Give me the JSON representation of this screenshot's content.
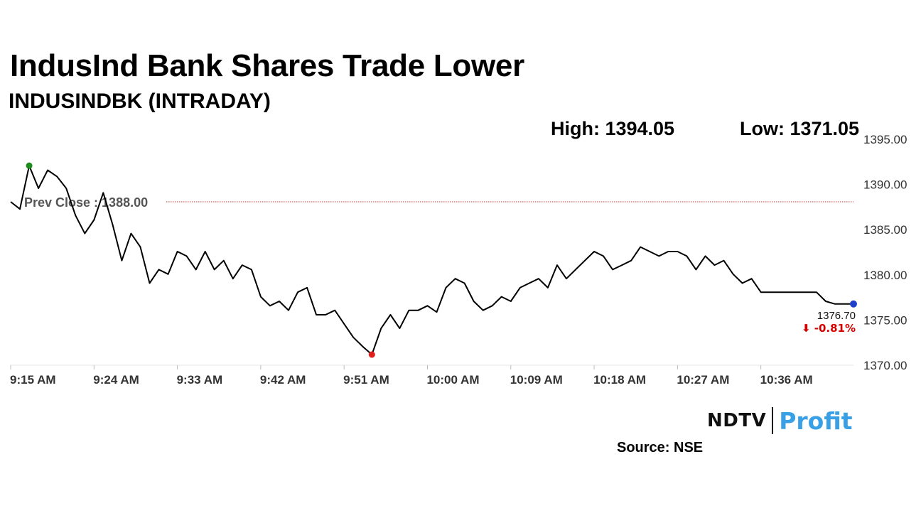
{
  "header": {
    "title": "IndusInd Bank Shares Trade Lower",
    "subtitle": "INDUSINDBK (INTRADAY)"
  },
  "stats": {
    "high_label": "High: 1394.05",
    "low_label": "Low: 1371.05"
  },
  "footer": {
    "brand_left": "NDTV",
    "brand_right": "Profit",
    "source": "Source: NSE"
  },
  "colors": {
    "line": "#000000",
    "prev_close": "#c0392b",
    "high_marker": "#1e8c1e",
    "low_marker": "#e0201c",
    "last_marker": "#1f3fc8",
    "change_negative": "#d40000",
    "brand_accent": "#3aa0e6"
  },
  "chart_data": {
    "type": "line",
    "x_unit": "time",
    "x_ticks": [
      "9:15 AM",
      "9:24 AM",
      "9:33 AM",
      "9:42 AM",
      "9:51 AM",
      "10:00 AM",
      "10:09 AM",
      "10:18 AM",
      "10:27 AM",
      "10:36 AM"
    ],
    "y_ticks": [
      "1370.00",
      "1375.00",
      "1380.00",
      "1385.00",
      "1390.00",
      "1395.00"
    ],
    "ylim": [
      1370,
      1395
    ],
    "xlim": [
      "9:15",
      "10:46"
    ],
    "prev_close": 1388.0,
    "prev_close_label": "Prev Close : 1388.00",
    "last_value_label": "1376.70",
    "change_label": "⬇ -0.81%",
    "series": [
      {
        "points": [
          [
            "9:15",
            1388.0
          ],
          [
            "9:16",
            1387.2
          ],
          [
            "9:17",
            1392.0
          ],
          [
            "9:18",
            1389.5
          ],
          [
            "9:19",
            1391.5
          ],
          [
            "9:20",
            1390.8
          ],
          [
            "9:21",
            1389.5
          ],
          [
            "9:22",
            1386.5
          ],
          [
            "9:23",
            1384.5
          ],
          [
            "9:24",
            1386.0
          ],
          [
            "9:25",
            1389.0
          ],
          [
            "9:26",
            1385.5
          ],
          [
            "9:27",
            1381.5
          ],
          [
            "9:28",
            1384.5
          ],
          [
            "9:29",
            1383.0
          ],
          [
            "9:30",
            1379.0
          ],
          [
            "9:31",
            1380.5
          ],
          [
            "9:32",
            1380.0
          ],
          [
            "9:33",
            1382.5
          ],
          [
            "9:34",
            1382.0
          ],
          [
            "9:35",
            1380.5
          ],
          [
            "9:36",
            1382.5
          ],
          [
            "9:37",
            1380.5
          ],
          [
            "9:38",
            1381.5
          ],
          [
            "9:39",
            1379.5
          ],
          [
            "9:40",
            1381.0
          ],
          [
            "9:41",
            1380.5
          ],
          [
            "9:42",
            1377.5
          ],
          [
            "9:43",
            1376.5
          ],
          [
            "9:44",
            1377.0
          ],
          [
            "9:45",
            1376.0
          ],
          [
            "9:46",
            1378.0
          ],
          [
            "9:47",
            1378.5
          ],
          [
            "9:48",
            1375.5
          ],
          [
            "9:49",
            1375.5
          ],
          [
            "9:50",
            1376.0
          ],
          [
            "9:51",
            1374.5
          ],
          [
            "9:52",
            1373.0
          ],
          [
            "9:53",
            1372.0
          ],
          [
            "9:54",
            1371.1
          ],
          [
            "9:55",
            1374.0
          ],
          [
            "9:56",
            1375.5
          ],
          [
            "9:57",
            1374.0
          ],
          [
            "9:58",
            1376.0
          ],
          [
            "9:59",
            1376.0
          ],
          [
            "10:00",
            1376.5
          ],
          [
            "10:01",
            1375.8
          ],
          [
            "10:02",
            1378.5
          ],
          [
            "10:03",
            1379.5
          ],
          [
            "10:04",
            1379.0
          ],
          [
            "10:05",
            1377.0
          ],
          [
            "10:06",
            1376.0
          ],
          [
            "10:07",
            1376.5
          ],
          [
            "10:08",
            1377.5
          ],
          [
            "10:09",
            1377.0
          ],
          [
            "10:10",
            1378.5
          ],
          [
            "10:11",
            1379.0
          ],
          [
            "10:12",
            1379.5
          ],
          [
            "10:13",
            1378.5
          ],
          [
            "10:14",
            1381.0
          ],
          [
            "10:15",
            1379.5
          ],
          [
            "10:16",
            1380.5
          ],
          [
            "10:17",
            1381.5
          ],
          [
            "10:18",
            1382.5
          ],
          [
            "10:19",
            1382.0
          ],
          [
            "10:20",
            1380.5
          ],
          [
            "10:21",
            1381.0
          ],
          [
            "10:22",
            1381.5
          ],
          [
            "10:23",
            1383.0
          ],
          [
            "10:24",
            1382.5
          ],
          [
            "10:25",
            1382.0
          ],
          [
            "10:26",
            1382.5
          ],
          [
            "10:27",
            1382.5
          ],
          [
            "10:28",
            1382.0
          ],
          [
            "10:29",
            1380.5
          ],
          [
            "10:30",
            1382.0
          ],
          [
            "10:31",
            1381.0
          ],
          [
            "10:32",
            1381.5
          ],
          [
            "10:33",
            1380.0
          ],
          [
            "10:34",
            1379.0
          ],
          [
            "10:35",
            1379.5
          ],
          [
            "10:36",
            1378.0
          ],
          [
            "10:37",
            1378.0
          ],
          [
            "10:38",
            1378.0
          ],
          [
            "10:39",
            1378.0
          ],
          [
            "10:40",
            1378.0
          ],
          [
            "10:41",
            1378.0
          ],
          [
            "10:42",
            1378.0
          ],
          [
            "10:43",
            1377.0
          ],
          [
            "10:44",
            1376.7
          ],
          [
            "10:45",
            1376.7
          ],
          [
            "10:46",
            1376.7
          ]
        ]
      }
    ],
    "markers": {
      "high": [
        "9:17",
        1392.0
      ],
      "low": [
        "9:54",
        1371.1
      ],
      "last": [
        "10:46",
        1376.7
      ]
    },
    "grid": false,
    "legend": "none"
  }
}
